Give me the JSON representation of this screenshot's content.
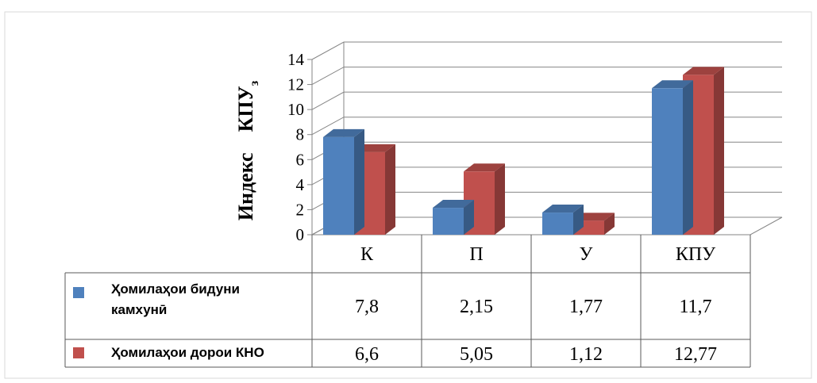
{
  "chart_data": {
    "type": "bar",
    "categories": [
      "К",
      "П",
      "У",
      "КПУ"
    ],
    "series": [
      {
        "name": "Ҳомилаҳои бидуни камхунӣ",
        "values": [
          7.8,
          2.15,
          1.77,
          11.7
        ],
        "color": "#4f81bd"
      },
      {
        "name": "Ҳомилаҳои дорои КНО",
        "values": [
          6.6,
          5.05,
          1.12,
          12.77
        ],
        "color": "#c0504d"
      }
    ],
    "table_values": [
      [
        "7,8",
        "2,15",
        "1,77",
        "11,7"
      ],
      [
        "6,6",
        "5,05",
        "1,12",
        "12,77"
      ]
    ],
    "ylabel": "Индекс    КПУ",
    "ylabel_subscript": "з",
    "ylim": [
      0,
      14
    ],
    "yticks": [
      "0",
      "2",
      "4",
      "6",
      "8",
      "10",
      "12",
      "14"
    ],
    "grid": true,
    "legend": "data-table"
  }
}
